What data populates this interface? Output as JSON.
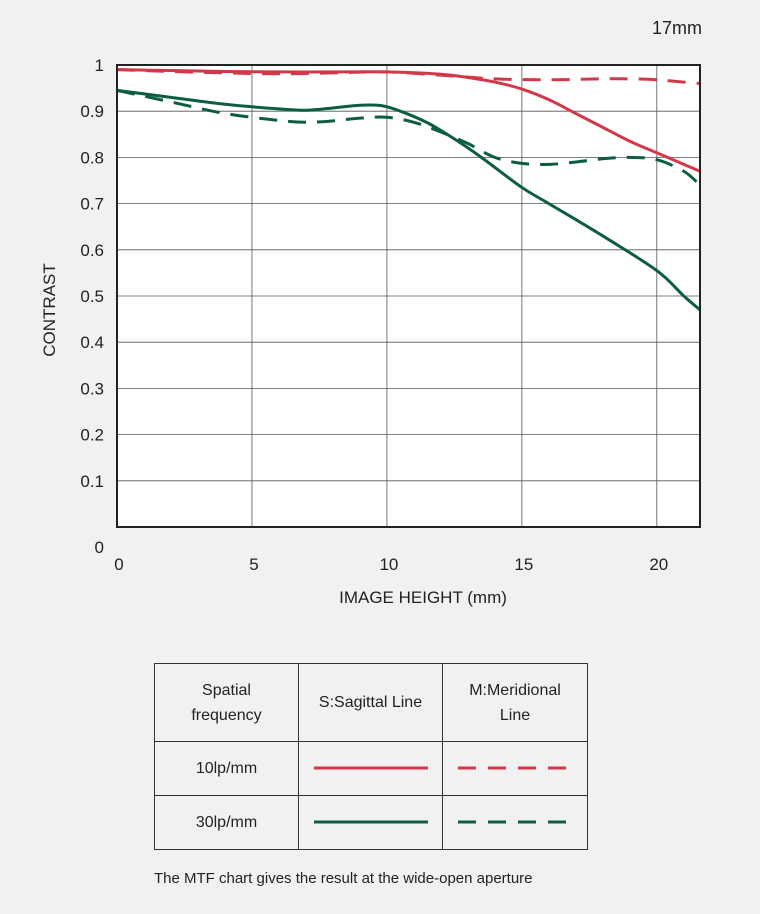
{
  "chart_data": {
    "type": "line",
    "title": "17mm",
    "xlabel": "IMAGE HEIGHT (mm)",
    "ylabel": "CONTRAST",
    "xlim": [
      0,
      21.6
    ],
    "ylim": [
      0,
      1
    ],
    "x_ticks": [
      "0",
      "5",
      "10",
      "15",
      "20"
    ],
    "x_tick_values": [
      0,
      5,
      10,
      15,
      20
    ],
    "y_ticks": [
      "0",
      "0.1",
      "0.2",
      "0.3",
      "0.4",
      "0.5",
      "0.6",
      "0.7",
      "0.8",
      "0.9",
      "1"
    ],
    "y_tick_values": [
      0,
      0.1,
      0.2,
      0.3,
      0.4,
      0.5,
      0.6,
      0.7,
      0.8,
      0.9,
      1
    ],
    "grid": true,
    "series": [
      {
        "name": "10lp/mm S:Sagittal Line",
        "color": "#d2384a",
        "dashed": false,
        "x": [
          0,
          2,
          4,
          6,
          8,
          10,
          12,
          13,
          14,
          15,
          16,
          17,
          18,
          19,
          20,
          21,
          21.6
        ],
        "y": [
          0.99,
          0.988,
          0.986,
          0.985,
          0.985,
          0.985,
          0.98,
          0.973,
          0.963,
          0.948,
          0.925,
          0.895,
          0.865,
          0.835,
          0.81,
          0.785,
          0.77
        ]
      },
      {
        "name": "10lp/mm M:Meridional Line",
        "color": "#d2384a",
        "dashed": true,
        "x": [
          0,
          2,
          4,
          6,
          8,
          10,
          12,
          14,
          16,
          18,
          19,
          20,
          21,
          21.6
        ],
        "y": [
          0.99,
          0.986,
          0.983,
          0.981,
          0.983,
          0.985,
          0.978,
          0.97,
          0.968,
          0.97,
          0.97,
          0.968,
          0.963,
          0.96
        ]
      },
      {
        "name": "30lp/mm S:Sagittal Line",
        "color": "#0d5e3e",
        "dashed": false,
        "x": [
          0,
          2,
          4,
          6,
          7,
          8,
          9,
          9.8,
          10.5,
          11.5,
          12.5,
          13.5,
          15,
          16,
          18,
          20,
          21,
          21.6
        ],
        "y": [
          0.945,
          0.93,
          0.915,
          0.905,
          0.902,
          0.907,
          0.913,
          0.912,
          0.9,
          0.875,
          0.84,
          0.8,
          0.735,
          0.7,
          0.63,
          0.555,
          0.5,
          0.47
        ]
      },
      {
        "name": "30lp/mm M:Meridional Line",
        "color": "#0d5e3e",
        "dashed": true,
        "x": [
          0,
          2,
          4,
          6,
          7,
          8,
          9,
          10,
          11,
          12,
          13,
          14,
          15,
          16,
          17,
          18,
          19,
          20,
          21,
          21.6
        ],
        "y": [
          0.945,
          0.92,
          0.895,
          0.88,
          0.876,
          0.879,
          0.885,
          0.887,
          0.876,
          0.855,
          0.83,
          0.8,
          0.787,
          0.785,
          0.79,
          0.797,
          0.8,
          0.795,
          0.77,
          0.74
        ]
      }
    ]
  },
  "legend": {
    "header_frequency": "Spatial frequency",
    "header_sagittal": "S:Sagittal Line",
    "header_meridional": "M:Meridional Line",
    "row1_label": "10lp/mm",
    "row2_label": "30lp/mm",
    "color_10lp": "#d2384a",
    "color_30lp": "#0d5e3e"
  },
  "note": "The MTF chart gives the result at the wide-open aperture"
}
